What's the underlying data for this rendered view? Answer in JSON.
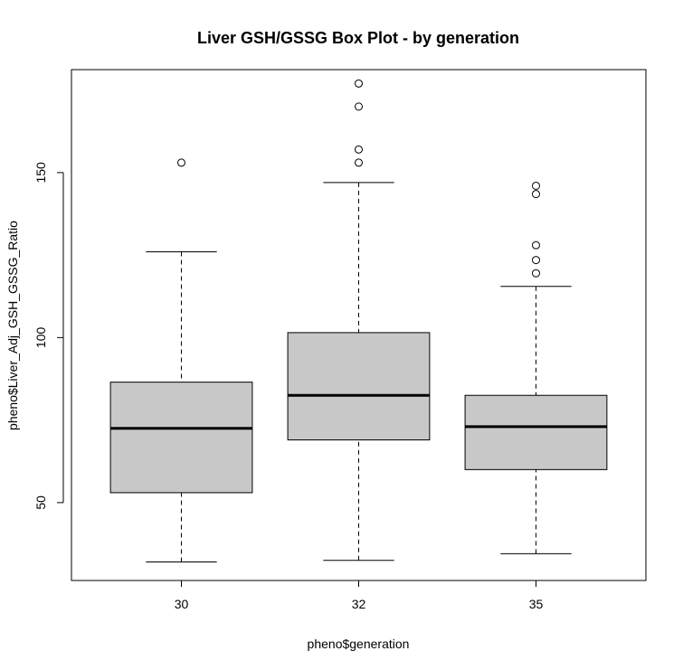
{
  "chart_data": {
    "type": "box",
    "title": "Liver GSH/GSSG Box Plot - by generation",
    "xlabel": "pheno$generation",
    "ylabel": "pheno$Liver_Adj_GSH_GSSG_Ratio",
    "ylim": [
      26.4,
      181.2
    ],
    "yticks": [
      50,
      100,
      150
    ],
    "categories": [
      "30",
      "32",
      "35"
    ],
    "boxes": [
      {
        "category": "30",
        "whisker_low": 32,
        "q1": 53,
        "median": 72.5,
        "q3": 86.5,
        "whisker_high": 126,
        "outliers": [
          153
        ]
      },
      {
        "category": "32",
        "whisker_low": 32.5,
        "q1": 69,
        "median": 82.5,
        "q3": 101.5,
        "whisker_high": 147,
        "outliers": [
          153,
          157,
          170,
          177
        ]
      },
      {
        "category": "35",
        "whisker_low": 34.5,
        "q1": 60,
        "median": 73,
        "q3": 82.5,
        "whisker_high": 115.5,
        "outliers": [
          119.5,
          123.5,
          128,
          143.5,
          146
        ]
      }
    ],
    "colors": {
      "box_fill": "#c8c8c8",
      "stroke": "#000000"
    }
  }
}
